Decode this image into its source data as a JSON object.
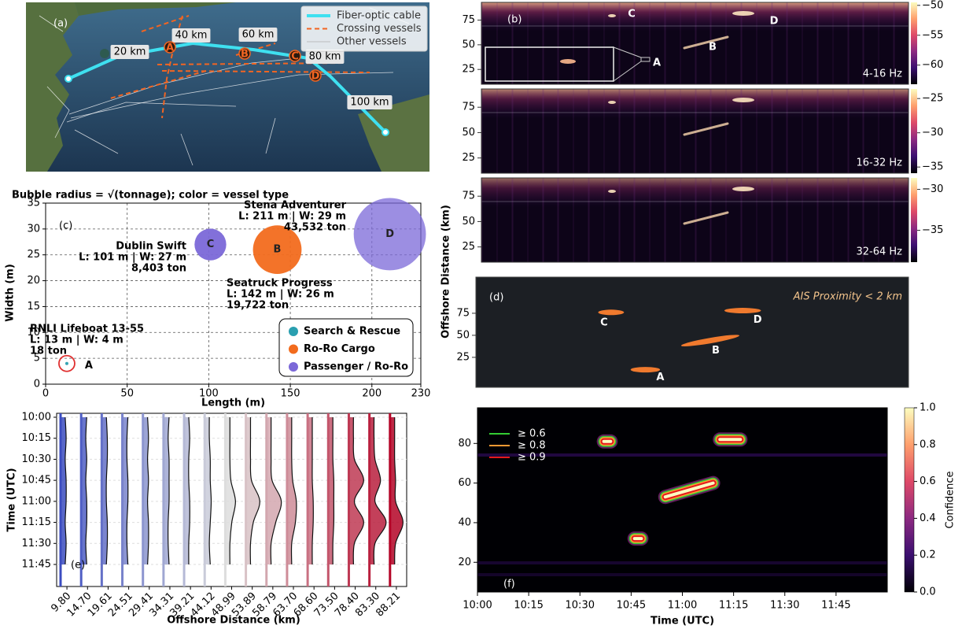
{
  "chart_data": [
    {
      "type": "map",
      "title": "(a)",
      "legend": [
        {
          "name": "Fiber-optic cable",
          "color": "#3fe0f0"
        },
        {
          "name": "Crossing vessels",
          "color": "#f26522"
        },
        {
          "name": "Other vessels",
          "color": "#ffffff"
        }
      ],
      "distance_labels": [
        "20 km",
        "40 km",
        "60 km",
        "80 km",
        "100 km"
      ],
      "markers": [
        "A",
        "B",
        "C",
        "D"
      ]
    },
    {
      "type": "spectrogram",
      "title": "(b)",
      "ylabel": "Offshore Distance (km)",
      "ylim": [
        10,
        93
      ],
      "yticks": [
        25,
        50,
        75
      ],
      "annotations": [
        "A",
        "B",
        "C",
        "D"
      ],
      "colormap": [
        "#000004",
        "#3b0f70",
        "#8c2981",
        "#de4968",
        "#fe9f6d",
        "#fcfdbf"
      ],
      "panels": [
        {
          "band": "4-16 Hz",
          "clim": [
            -63.2,
            -49.5
          ],
          "cticks": [
            {
              "value": -50,
              "label": "−50"
            },
            {
              "value": -55,
              "label": "−55"
            },
            {
              "value": -60,
              "label": "−60"
            }
          ]
        },
        {
          "band": "16-32 Hz",
          "clim": [
            -35.9,
            -23.6
          ],
          "cticks": [
            {
              "value": -25,
              "label": "−25"
            },
            {
              "value": -30,
              "label": "−30"
            },
            {
              "value": -35,
              "label": "−35"
            }
          ]
        },
        {
          "band": "32-64 Hz",
          "clim": [
            -38.9,
            -28.6
          ],
          "cticks": [
            {
              "value": -30,
              "label": "−30"
            },
            {
              "value": -35,
              "label": "−35"
            }
          ]
        }
      ]
    },
    {
      "type": "bubble",
      "title": "(c)",
      "subtitle": "Bubble radius = √(tonnage); color = vessel type",
      "xlabel": "Length (m)",
      "ylabel": "Width (m)",
      "xlim": [
        0,
        230
      ],
      "ylim": [
        0,
        35
      ],
      "xticks": [
        0,
        50,
        100,
        150,
        200,
        230
      ],
      "yticks": [
        0,
        5,
        10,
        15,
        20,
        25,
        30,
        35
      ],
      "grid": true,
      "legend_position": "lower right",
      "series": [
        {
          "name": "Search & Rescue",
          "color": "#2a9fb0",
          "points": [
            {
              "id": "A",
              "name": "RNLI Lifeboat 13-55",
              "details": "L: 13 m | W: 4 m",
              "tonnage_label": "18 ton",
              "x": 13,
              "y": 4,
              "size": 18
            }
          ]
        },
        {
          "name": "Ro-Ro Cargo",
          "color": "#f26b1d",
          "points": [
            {
              "id": "B",
              "name": "Seatruck Progress",
              "details": "L: 142 m | W: 26 m",
              "tonnage_label": "19,722 ton",
              "x": 142,
              "y": 26,
              "size": 19722
            }
          ]
        },
        {
          "name": "Passenger / Ro-Ro",
          "color": "#7b68d8",
          "points": [
            {
              "id": "C",
              "name": "Dublin Swift",
              "details": "L: 101 m | W: 27 m",
              "tonnage_label": "8,403 ton",
              "x": 101,
              "y": 27,
              "size": 8403
            },
            {
              "id": "D",
              "name": "Stena Adventurer",
              "details": "L: 211 m | W: 29 m",
              "tonnage_label": "43,532 ton",
              "x": 211,
              "y": 29,
              "size": 43532
            }
          ]
        }
      ]
    },
    {
      "type": "tracks",
      "title": "(d)",
      "annotation": "AIS Proximity < 2 km",
      "color": "#f07a2e",
      "xlim": [
        "10:00",
        "12:00"
      ],
      "ylim": [
        -9,
        116
      ],
      "yticks": [
        25,
        50,
        75
      ],
      "tracks": [
        {
          "name": "A",
          "x": [
            "10:44",
            "10:50"
          ],
          "y": [
            11,
            11
          ]
        },
        {
          "name": "B",
          "x": [
            "10:58",
            "11:12"
          ],
          "y": [
            39,
            49
          ]
        },
        {
          "name": "C",
          "x": [
            "10:35",
            "10:40"
          ],
          "y": [
            76,
            76
          ]
        },
        {
          "name": "D",
          "x": [
            "11:10",
            "11:18"
          ],
          "y": [
            78,
            78
          ]
        }
      ]
    },
    {
      "type": "ridgeline",
      "title": "(e)",
      "xlabel": "Offshore Distance (km)",
      "ylabel": "Time (UTC)",
      "times": [
        "10:00",
        "10:15",
        "10:30",
        "10:45",
        "11:00",
        "11:15",
        "11:30",
        "11:45"
      ],
      "colormap": [
        "#3b4cc0",
        "#dddddd",
        "#b40426"
      ],
      "categories": [
        "9.80",
        "14.70",
        "19.61",
        "24.51",
        "29.41",
        "34.31",
        "39.21",
        "44.12",
        "48.99",
        "53.89",
        "58.79",
        "63.70",
        "68.60",
        "73.50",
        "78.40",
        "83.30",
        "88.21"
      ],
      "values": [
        [
          0.25,
          0.3,
          0.25,
          0.3,
          0.3,
          0.25,
          0.3,
          0.25
        ],
        [
          0.3,
          0.25,
          0.3,
          0.25,
          0.3,
          0.3,
          0.25,
          0.3
        ],
        [
          0.25,
          0.3,
          0.3,
          0.25,
          0.25,
          0.3,
          0.3,
          0.25
        ],
        [
          0.3,
          0.25,
          0.25,
          0.3,
          0.3,
          0.25,
          0.25,
          0.3
        ],
        [
          0.25,
          0.3,
          0.25,
          0.3,
          0.25,
          0.3,
          0.3,
          0.25
        ],
        [
          0.3,
          0.25,
          0.3,
          0.3,
          0.3,
          0.25,
          0.25,
          0.3
        ],
        [
          0.25,
          0.3,
          0.25,
          0.25,
          0.3,
          0.3,
          0.25,
          0.25
        ],
        [
          0.25,
          0.25,
          0.3,
          0.3,
          0.35,
          0.3,
          0.25,
          0.3
        ],
        [
          0.25,
          0.25,
          0.25,
          0.3,
          0.55,
          0.35,
          0.25,
          0.25
        ],
        [
          0.25,
          0.25,
          0.25,
          0.3,
          0.75,
          0.4,
          0.25,
          0.25
        ],
        [
          0.25,
          0.25,
          0.25,
          0.3,
          0.8,
          0.5,
          0.25,
          0.25
        ],
        [
          0.25,
          0.25,
          0.25,
          0.3,
          0.5,
          0.45,
          0.25,
          0.25
        ],
        [
          0.25,
          0.25,
          0.25,
          0.25,
          0.3,
          0.3,
          0.25,
          0.25
        ],
        [
          0.25,
          0.25,
          0.25,
          0.3,
          0.3,
          0.3,
          0.25,
          0.25
        ],
        [
          0.25,
          0.25,
          0.3,
          0.8,
          0.3,
          0.8,
          0.3,
          0.25
        ],
        [
          0.25,
          0.25,
          0.3,
          0.6,
          0.3,
          0.9,
          0.3,
          0.25
        ],
        [
          0.25,
          0.25,
          0.25,
          0.3,
          0.3,
          0.7,
          0.3,
          0.25
        ]
      ]
    },
    {
      "type": "heatmap",
      "title": "(f)",
      "xlabel": "Time (UTC)",
      "colorbar_label": "Confidence",
      "xlim": [
        "10:00",
        "12:00"
      ],
      "xticks": [
        "10:00",
        "10:15",
        "10:30",
        "10:45",
        "11:00",
        "11:15",
        "11:30",
        "11:45"
      ],
      "ylim": [
        5,
        98
      ],
      "yticks": [
        20,
        40,
        60,
        80
      ],
      "clim": [
        0,
        1
      ],
      "cticks": [
        {
          "value": 0,
          "label": "0.0"
        },
        {
          "value": 0.2,
          "label": "0.2"
        },
        {
          "value": 0.4,
          "label": "0.4"
        },
        {
          "value": 0.6,
          "label": "0.6"
        },
        {
          "value": 0.8,
          "label": "0.8"
        },
        {
          "value": 1,
          "label": "1.0"
        }
      ],
      "colormap": [
        "#000004",
        "#3b0f70",
        "#8c2981",
        "#de4968",
        "#fe9f6d",
        "#fcfdbf"
      ],
      "levels": [
        {
          "name": "≥ 0.6",
          "color": "#33cc33"
        },
        {
          "name": "≥ 0.8",
          "color": "#ff9933"
        },
        {
          "name": "≥ 0.9",
          "color": "#e41a1c"
        }
      ],
      "tracks": [
        {
          "x": [
            "10:37",
            "10:39"
          ],
          "y": [
            81,
            81
          ]
        },
        {
          "x": [
            "11:11",
            "11:17"
          ],
          "y": [
            82,
            82
          ]
        },
        {
          "x": [
            "10:55",
            "11:09"
          ],
          "y": [
            53,
            60
          ]
        },
        {
          "x": [
            "10:46",
            "10:48"
          ],
          "y": [
            32,
            32
          ]
        }
      ]
    }
  ]
}
